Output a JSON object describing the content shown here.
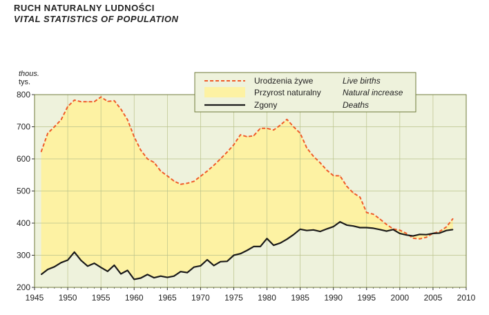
{
  "title_pl": "RUCH NATURALNY LUDNOŚCI",
  "title_en": "VITAL STATISTICS OF POPULATION",
  "chart_data": {
    "type": "line",
    "yunit_en": "thous.",
    "yunit_pl": "tys.",
    "xlim": [
      1945,
      2010
    ],
    "ylim": [
      200,
      800
    ],
    "xticks": [
      1945,
      1950,
      1955,
      1960,
      1965,
      1970,
      1975,
      1980,
      1985,
      1990,
      1995,
      2000,
      2005,
      2010
    ],
    "yticks": [
      200,
      300,
      400,
      500,
      600,
      700,
      800
    ],
    "grid": true,
    "legend_position": "top-center",
    "x": [
      1946,
      1947,
      1948,
      1949,
      1950,
      1951,
      1952,
      1953,
      1954,
      1955,
      1956,
      1957,
      1958,
      1959,
      1960,
      1961,
      1962,
      1963,
      1964,
      1965,
      1966,
      1967,
      1968,
      1969,
      1970,
      1971,
      1972,
      1973,
      1974,
      1975,
      1976,
      1977,
      1978,
      1979,
      1980,
      1981,
      1982,
      1983,
      1984,
      1985,
      1986,
      1987,
      1988,
      1989,
      1990,
      1991,
      1992,
      1993,
      1994,
      1995,
      1996,
      1997,
      1998,
      1999,
      2000,
      2001,
      2002,
      2003,
      2004,
      2005,
      2006,
      2007,
      2008
    ],
    "series": [
      {
        "name_pl": "Urodzenia żywe",
        "name_en": "Live births",
        "color": "#f05a28",
        "values": [
          622,
          680,
          700,
          722,
          763,
          783,
          778,
          778,
          778,
          793,
          779,
          781,
          755,
          722,
          669,
          627,
          600,
          589,
          562,
          547,
          531,
          521,
          524,
          530,
          546,
          562,
          580,
          600,
          621,
          644,
          675,
          669,
          672,
          695,
          695,
          690,
          705,
          723,
          700,
          680,
          634,
          608,
          588,
          565,
          548,
          547,
          515,
          494,
          481,
          433,
          428,
          413,
          396,
          382,
          378,
          368,
          353,
          351,
          356,
          368,
          374,
          388,
          414
        ]
      },
      {
        "name_pl": "Zgony",
        "name_en": "Deaths",
        "color": "#1a1a1a",
        "values": [
          240,
          256,
          264,
          277,
          285,
          310,
          284,
          266,
          275,
          262,
          250,
          269,
          242,
          253,
          225,
          229,
          240,
          230,
          235,
          231,
          235,
          249,
          246,
          263,
          267,
          286,
          268,
          280,
          281,
          300,
          305,
          315,
          327,
          327,
          352,
          331,
          338,
          350,
          364,
          381,
          377,
          379,
          374,
          382,
          389,
          404,
          394,
          391,
          386,
          386,
          384,
          380,
          375,
          380,
          368,
          363,
          360,
          365,
          364,
          368,
          369,
          377,
          380
        ]
      }
    ],
    "fill": {
      "name_pl": "Przyrost naturalny",
      "name_en": "Natural increase",
      "color": "#fdf2a3"
    }
  }
}
